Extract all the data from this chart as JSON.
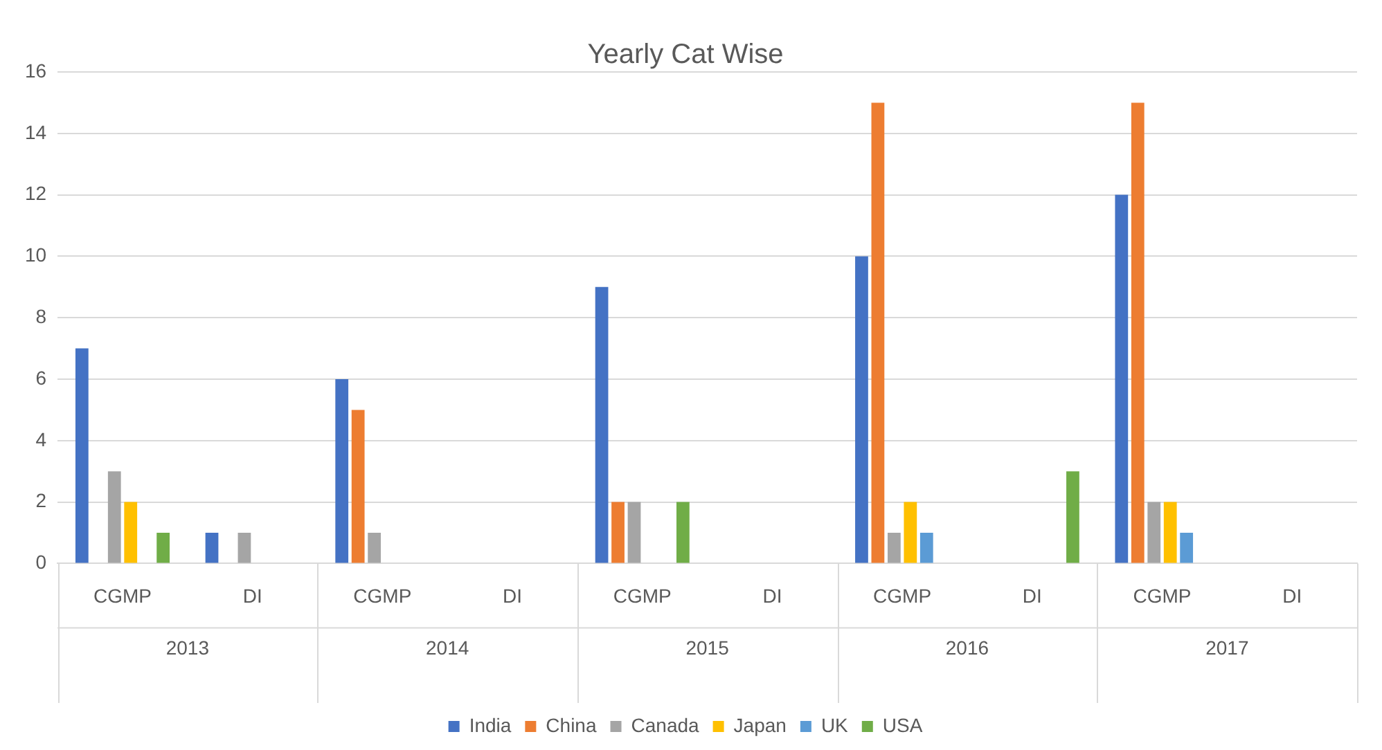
{
  "chart_data": {
    "type": "bar",
    "title": "Yearly Cat Wise",
    "categories": [
      "CGMP",
      "DI",
      "CGMP",
      "DI",
      "CGMP",
      "DI",
      "CGMP",
      "DI",
      "CGMP",
      "DI"
    ],
    "annotations": [
      "2013",
      "2014",
      "2015",
      "2016",
      "2017"
    ],
    "series": [
      {
        "name": "India",
        "color": "#4472c4",
        "values": [
          7,
          1,
          6,
          0,
          9,
          0,
          10,
          0,
          12,
          0
        ]
      },
      {
        "name": "China",
        "color": "#ed7d31",
        "values": [
          0,
          0,
          5,
          0,
          2,
          0,
          15,
          0,
          15,
          0
        ]
      },
      {
        "name": "Canada",
        "color": "#a5a5a5",
        "values": [
          3,
          1,
          1,
          0,
          2,
          0,
          1,
          0,
          2,
          0
        ]
      },
      {
        "name": "Japan",
        "color": "#ffc000",
        "values": [
          2,
          0,
          0,
          0,
          0,
          0,
          2,
          0,
          2,
          0
        ]
      },
      {
        "name": "UK",
        "color": "#5b9bd5",
        "values": [
          0,
          0,
          0,
          0,
          0,
          0,
          1,
          0,
          1,
          0
        ]
      },
      {
        "name": "USA",
        "color": "#70ad47",
        "values": [
          1,
          0,
          0,
          0,
          2,
          0,
          0,
          3,
          0,
          0
        ]
      }
    ],
    "ylim": [
      0,
      16
    ],
    "yticks": [
      0,
      2,
      4,
      6,
      8,
      10,
      12,
      14,
      16
    ],
    "grid": "y",
    "legend": "bottom"
  }
}
